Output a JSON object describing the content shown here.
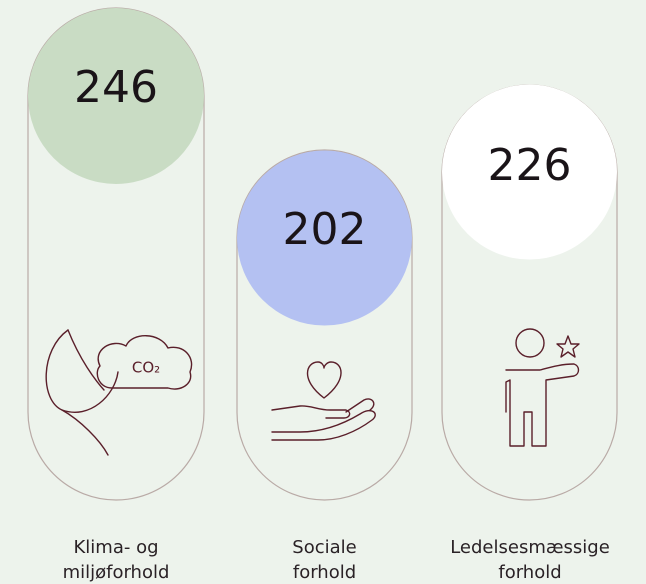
{
  "items": [
    {
      "value": "246",
      "label": [
        "Klima- og",
        "miljøforhold"
      ],
      "icon_text": "CO₂"
    },
    {
      "value": "202",
      "label": [
        "Sociale",
        "forhold"
      ]
    },
    {
      "value": "226",
      "label": [
        "Ledelsesmæssige",
        "forhold"
      ]
    }
  ]
}
